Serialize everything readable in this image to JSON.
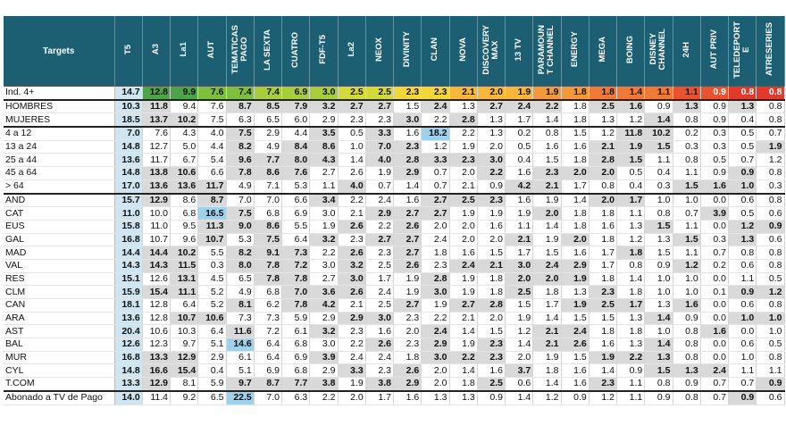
{
  "header": {
    "targets_label": "Targets",
    "channels": [
      "T5",
      "A3",
      "La1",
      "AUT",
      "TEMATICAS\nPAGO",
      "LA SEXTA",
      "CUATRO",
      "FDF-T5",
      "La2",
      "NEOX",
      "DIVINITY",
      "CLAN",
      "NOVA",
      "DISCOVERY\nMAX",
      "13 TV",
      "PARAMOUN\nT CHANNEL",
      "ENERGY",
      "MEGA",
      "BOING",
      "DISNEY\nCHANNEL",
      "24H",
      "AUT PRIV",
      "TELEDEPORT\nE",
      "ATRESERIES"
    ]
  },
  "colors": {
    "header_bg": "#1c5f73",
    "first_col_bg": "#cfe6f1",
    "shade_bg": "#d9d9d9",
    "highlight_bg": "#9fd1ea",
    "gradient": [
      "#4fa34a",
      "#7fbf3f",
      "#a9cc3c",
      "#d4d93a",
      "#f2d738",
      "#f5b83a",
      "#f29a3a",
      "#ee7a35",
      "#e8522f",
      "#e03a2c"
    ]
  },
  "rows": [
    {
      "label": "Ind. 4+",
      "group": "first",
      "values": [
        "14.7",
        "12.8",
        "9.9",
        "7.6",
        "7.4",
        "7.4",
        "6.9",
        "3.0",
        "2.5",
        "2.5",
        "2.3",
        "2.3",
        "2.1",
        "2.0",
        "1.9",
        "1.9",
        "1.8",
        "1.8",
        "1.4",
        "1.1",
        "1.1",
        "0.9",
        "0.8",
        "0.8"
      ],
      "shaded": [],
      "hi": []
    },
    {
      "label": "HOMBRES",
      "group": "sep",
      "values": [
        "10.3",
        "11.8",
        "9.4",
        "7.6",
        "8.7",
        "8.5",
        "7.9",
        "3.2",
        "2.7",
        "2.7",
        "1.5",
        "2.4",
        "1.3",
        "2.7",
        "2.4",
        "2.2",
        "1.8",
        "2.5",
        "1.6",
        "0.9",
        "1.3",
        "0.9",
        "1.3",
        "0.8"
      ],
      "shaded": [
        1,
        4,
        5,
        6,
        7,
        8,
        9,
        11,
        13,
        14,
        15,
        17,
        18,
        20,
        22
      ],
      "hi": []
    },
    {
      "label": "MUJERES",
      "group": "",
      "values": [
        "18.5",
        "13.7",
        "10.2",
        "7.5",
        "6.3",
        "6.5",
        "6.0",
        "2.9",
        "2.3",
        "2.3",
        "3.0",
        "2.2",
        "2.8",
        "1.3",
        "1.7",
        "1.4",
        "1.8",
        "1.3",
        "1.2",
        "1.4",
        "0.8",
        "0.9",
        "0.4",
        "0.8"
      ],
      "shaded": [
        1,
        2,
        10,
        12,
        19
      ],
      "hi": []
    },
    {
      "label": "4 a 12",
      "group": "sep",
      "values": [
        "7.0",
        "7.6",
        "4.3",
        "4.0",
        "7.5",
        "2.9",
        "4.4",
        "3.5",
        "0.5",
        "3.3",
        "1.6",
        "18.2",
        "2.2",
        "1.3",
        "0.2",
        "0.8",
        "1.5",
        "1.2",
        "11.8",
        "10.2",
        "0.2",
        "0.3",
        "0.5",
        "0.7"
      ],
      "shaded": [
        4,
        7,
        9,
        18,
        19
      ],
      "hi": [
        11
      ]
    },
    {
      "label": "13 a 24",
      "group": "",
      "values": [
        "14.8",
        "12.7",
        "5.0",
        "4.4",
        "8.2",
        "4.9",
        "8.4",
        "8.6",
        "1.0",
        "7.0",
        "2.3",
        "1.2",
        "1.9",
        "2.0",
        "0.5",
        "1.6",
        "1.6",
        "2.1",
        "1.9",
        "1.5",
        "0.3",
        "0.3",
        "0.5",
        "1.9"
      ],
      "shaded": [
        4,
        6,
        7,
        9,
        10,
        17,
        18,
        19,
        23
      ],
      "hi": []
    },
    {
      "label": "25 a 44",
      "group": "",
      "values": [
        "13.6",
        "11.7",
        "6.7",
        "5.4",
        "9.6",
        "7.7",
        "8.0",
        "4.3",
        "1.4",
        "4.0",
        "2.8",
        "3.3",
        "2.3",
        "3.0",
        "0.4",
        "1.5",
        "1.8",
        "2.8",
        "1.5",
        "1.1",
        "0.8",
        "0.5",
        "0.7",
        "1.2"
      ],
      "shaded": [
        4,
        5,
        6,
        7,
        9,
        10,
        11,
        12,
        13,
        17,
        18
      ],
      "hi": []
    },
    {
      "label": "45 a 64",
      "group": "",
      "values": [
        "14.8",
        "13.8",
        "10.6",
        "6.6",
        "7.8",
        "8.6",
        "7.6",
        "2.7",
        "2.6",
        "1.9",
        "2.9",
        "0.7",
        "2.0",
        "2.2",
        "1.6",
        "2.3",
        "2.0",
        "2.0",
        "0.5",
        "0.4",
        "1.1",
        "0.9",
        "0.9",
        "0.8"
      ],
      "shaded": [
        1,
        2,
        4,
        5,
        6,
        10,
        13,
        15,
        16,
        17,
        22
      ],
      "hi": []
    },
    {
      "label": "> 64",
      "group": "",
      "values": [
        "17.0",
        "13.6",
        "13.6",
        "11.7",
        "4.9",
        "7.1",
        "5.3",
        "1.1",
        "4.0",
        "0.7",
        "1.4",
        "0.7",
        "2.1",
        "0.9",
        "4.2",
        "2.1",
        "1.7",
        "0.8",
        "0.4",
        "0.3",
        "1.5",
        "1.6",
        "1.0",
        "0.3"
      ],
      "shaded": [
        1,
        2,
        3,
        8,
        14,
        15,
        20,
        21,
        22
      ],
      "hi": []
    },
    {
      "label": "AND",
      "group": "sep",
      "values": [
        "15.7",
        "12.9",
        "8.6",
        "8.7",
        "7.0",
        "7.0",
        "6.6",
        "3.4",
        "2.2",
        "2.4",
        "1.6",
        "2.7",
        "2.5",
        "2.3",
        "1.6",
        "1.9",
        "1.4",
        "2.0",
        "1.7",
        "1.0",
        "1.0",
        "0.0",
        "0.6",
        "0.8"
      ],
      "shaded": [
        1,
        3,
        7,
        11,
        12,
        13,
        17,
        18
      ],
      "hi": []
    },
    {
      "label": "CAT",
      "group": "",
      "values": [
        "11.0",
        "10.0",
        "6.8",
        "16.5",
        "7.5",
        "6.8",
        "6.9",
        "3.0",
        "2.1",
        "2.9",
        "2.7",
        "2.7",
        "1.9",
        "1.9",
        "1.9",
        "2.0",
        "1.8",
        "1.8",
        "1.1",
        "0.8",
        "0.7",
        "3.9",
        "0.5",
        "0.6"
      ],
      "shaded": [
        4,
        9,
        10,
        11,
        15,
        21
      ],
      "hi": [
        3
      ]
    },
    {
      "label": "EUS",
      "group": "",
      "values": [
        "15.8",
        "11.0",
        "9.5",
        "11.3",
        "9.0",
        "8.6",
        "5.5",
        "1.9",
        "2.6",
        "2.2",
        "2.6",
        "2.0",
        "2.0",
        "1.6",
        "1.1",
        "1.4",
        "1.8",
        "1.6",
        "1.3",
        "1.5",
        "1.1",
        "0.0",
        "1.2",
        "0.9"
      ],
      "shaded": [
        3,
        4,
        5,
        8,
        10,
        19,
        22,
        23
      ],
      "hi": []
    },
    {
      "label": "GAL",
      "group": "",
      "values": [
        "16.8",
        "10.7",
        "9.6",
        "10.7",
        "5.3",
        "7.5",
        "6.4",
        "3.2",
        "2.3",
        "2.7",
        "2.7",
        "2.4",
        "2.0",
        "2.0",
        "2.1",
        "1.9",
        "2.0",
        "1.8",
        "1.2",
        "1.3",
        "1.5",
        "0.3",
        "1.3",
        "0.6"
      ],
      "shaded": [
        3,
        5,
        7,
        9,
        10,
        14,
        16,
        20,
        22
      ],
      "hi": []
    },
    {
      "label": "MAD",
      "group": "",
      "values": [
        "14.4",
        "14.4",
        "10.2",
        "5.5",
        "8.2",
        "9.1",
        "7.3",
        "2.2",
        "2.6",
        "2.3",
        "2.7",
        "1.8",
        "1.6",
        "1.5",
        "1.7",
        "1.5",
        "1.6",
        "1.7",
        "1.8",
        "1.5",
        "1.1",
        "0.7",
        "0.8",
        "0.8"
      ],
      "shaded": [
        1,
        2,
        4,
        5,
        6,
        8,
        10,
        18
      ],
      "hi": []
    },
    {
      "label": "VAL",
      "group": "",
      "values": [
        "14.3",
        "14.3",
        "11.5",
        "0.3",
        "8.0",
        "7.8",
        "7.2",
        "3.0",
        "3.2",
        "2.5",
        "2.6",
        "2.3",
        "2.4",
        "2.1",
        "3.0",
        "2.4",
        "2.9",
        "1.7",
        "0.8",
        "0.9",
        "1.2",
        "0.2",
        "0.6",
        "0.8"
      ],
      "shaded": [
        1,
        2,
        4,
        5,
        6,
        8,
        10,
        12,
        13,
        14,
        15,
        16,
        20
      ],
      "hi": []
    },
    {
      "label": "RES",
      "group": "",
      "values": [
        "15.1",
        "12.6",
        "13.1",
        "4.5",
        "6.5",
        "7.8",
        "7.8",
        "2.7",
        "3.0",
        "1.7",
        "1.9",
        "2.8",
        "1.9",
        "1.8",
        "2.0",
        "2.0",
        "1.9",
        "1.8",
        "1.4",
        "1.0",
        "1.0",
        "0.0",
        "1.1",
        "0.5"
      ],
      "shaded": [
        2,
        5,
        6,
        8,
        11,
        14,
        15,
        16
      ],
      "hi": []
    },
    {
      "label": "CLM",
      "group": "",
      "values": [
        "15.9",
        "15.4",
        "11.1",
        "5.2",
        "4.9",
        "6.8",
        "7.0",
        "3.6",
        "2.6",
        "2.4",
        "1.9",
        "3.0",
        "1.9",
        "1.8",
        "2.5",
        "1.8",
        "1.3",
        "2.3",
        "1.8",
        "1.0",
        "1.0",
        "0.1",
        "0.9",
        "1.2"
      ],
      "shaded": [
        1,
        2,
        6,
        7,
        8,
        11,
        14,
        17,
        22,
        23
      ],
      "hi": []
    },
    {
      "label": "CAN",
      "group": "",
      "values": [
        "18.1",
        "12.8",
        "6.4",
        "5.2",
        "8.1",
        "6.2",
        "7.8",
        "4.2",
        "2.1",
        "2.5",
        "2.7",
        "1.9",
        "2.7",
        "2.8",
        "1.5",
        "1.7",
        "1.9",
        "2.5",
        "1.7",
        "1.3",
        "1.6",
        "0.0",
        "0.6",
        "0.8"
      ],
      "shaded": [
        4,
        6,
        7,
        10,
        12,
        13,
        16,
        17,
        18,
        20
      ],
      "hi": []
    },
    {
      "label": "ARA",
      "group": "",
      "values": [
        "13.6",
        "12.8",
        "10.7",
        "10.6",
        "7.3",
        "7.3",
        "5.9",
        "2.9",
        "2.9",
        "3.0",
        "2.3",
        "2.2",
        "2.1",
        "2.0",
        "1.9",
        "1.4",
        "1.5",
        "1.5",
        "1.3",
        "1.4",
        "0.9",
        "0.0",
        "1.0",
        "1.0"
      ],
      "shaded": [
        2,
        3,
        8,
        9,
        19,
        22,
        23
      ],
      "hi": []
    },
    {
      "label": "AST",
      "group": "",
      "values": [
        "20.4",
        "10.6",
        "10.3",
        "6.4",
        "11.6",
        "7.2",
        "6.1",
        "3.2",
        "2.3",
        "1.6",
        "2.0",
        "2.4",
        "1.4",
        "1.5",
        "1.2",
        "2.1",
        "2.4",
        "1.8",
        "1.8",
        "1.0",
        "0.8",
        "1.6",
        "0.0",
        "1.0"
      ],
      "shaded": [
        4,
        7,
        11,
        15,
        16,
        21
      ],
      "hi": []
    },
    {
      "label": "BAL",
      "group": "",
      "values": [
        "12.6",
        "12.3",
        "9.7",
        "5.1",
        "14.6",
        "6.4",
        "6.8",
        "3.0",
        "2.2",
        "2.6",
        "2.3",
        "2.9",
        "1.9",
        "2.3",
        "1.4",
        "2.1",
        "2.6",
        "1.6",
        "1.3",
        "1.4",
        "0.8",
        "0.0",
        "0.6",
        "0.5"
      ],
      "shaded": [
        9,
        11,
        13,
        15,
        16,
        19
      ],
      "hi": [
        4
      ]
    },
    {
      "label": "MUR",
      "group": "",
      "values": [
        "16.8",
        "13.3",
        "12.9",
        "2.9",
        "6.1",
        "6.4",
        "6.9",
        "3.9",
        "2.4",
        "2.4",
        "1.8",
        "3.0",
        "2.2",
        "2.3",
        "2.0",
        "1.9",
        "1.5",
        "1.9",
        "2.2",
        "1.3",
        "0.8",
        "0.0",
        "1.0",
        "0.8"
      ],
      "shaded": [
        1,
        2,
        7,
        11,
        12,
        13,
        17,
        18,
        19
      ],
      "hi": []
    },
    {
      "label": "CYL",
      "group": "",
      "values": [
        "14.8",
        "16.6",
        "15.4",
        "0.4",
        "5.1",
        "6.9",
        "6.8",
        "2.9",
        "3.3",
        "2.3",
        "2.6",
        "2.0",
        "1.4",
        "1.6",
        "3.7",
        "1.8",
        "1.6",
        "1.4",
        "0.9",
        "1.5",
        "1.3",
        "2.4",
        "1.1",
        "1.1"
      ],
      "shaded": [
        1,
        2,
        8,
        10,
        14,
        19,
        20,
        21
      ],
      "hi": []
    },
    {
      "label": "T.COM",
      "group": "",
      "values": [
        "13.3",
        "12.9",
        "8.1",
        "5.9",
        "9.7",
        "8.7",
        "7.7",
        "3.8",
        "1.9",
        "3.8",
        "2.9",
        "2.0",
        "1.8",
        "2.5",
        "0.6",
        "1.4",
        "1.6",
        "2.3",
        "1.1",
        "0.8",
        "0.9",
        "0.7",
        "0.7",
        "0.9"
      ],
      "shaded": [
        1,
        4,
        5,
        6,
        7,
        9,
        10,
        13,
        17,
        23
      ],
      "hi": []
    },
    {
      "label": "Abonado a TV de Pago",
      "group": "sep",
      "values": [
        "14.0",
        "11.4",
        "9.2",
        "6.5",
        "22.5",
        "7.0",
        "6.3",
        "2.2",
        "2.0",
        "1.7",
        "1.6",
        "1.3",
        "1.3",
        "0.9",
        "1.4",
        "1.2",
        "0.9",
        "1.2",
        "1.1",
        "0.9",
        "0.8",
        "0.7",
        "0.9",
        "0.6"
      ],
      "shaded": [
        22
      ],
      "hi": [
        4
      ]
    }
  ]
}
